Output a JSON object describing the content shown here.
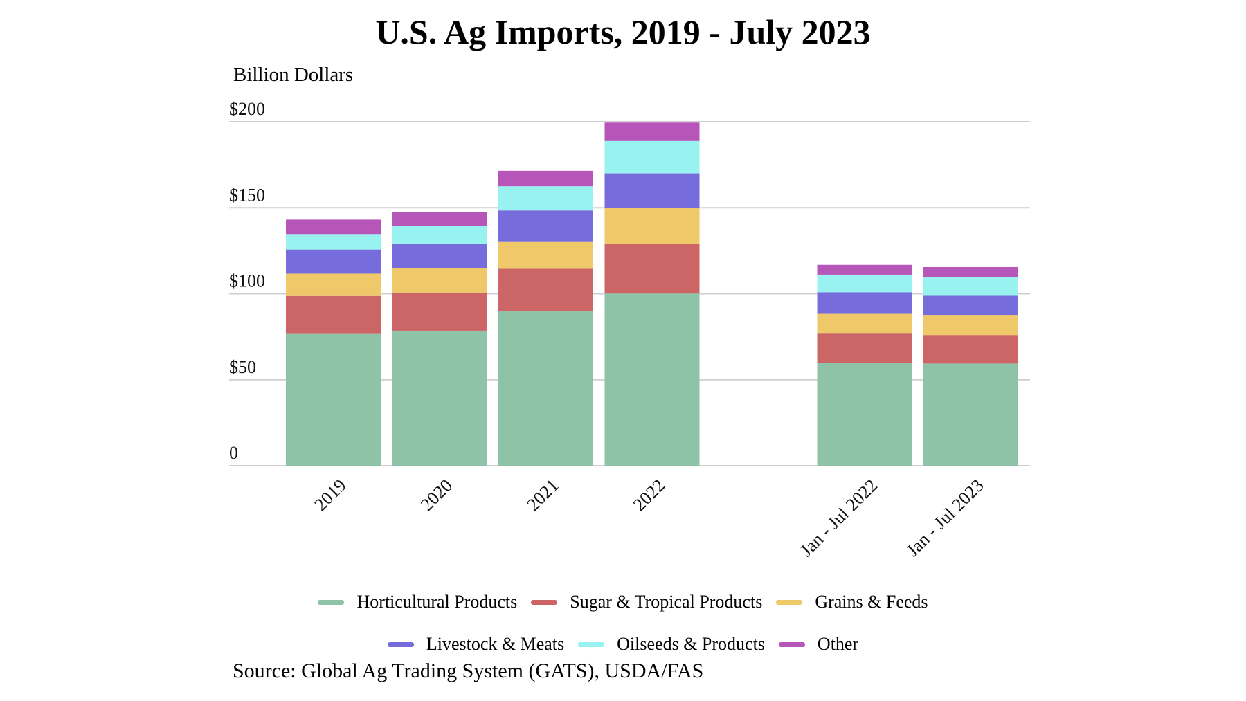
{
  "chart_data": {
    "type": "bar",
    "stacked": true,
    "title": "U.S. Ag Imports, 2019 - July 2023",
    "xlabel": "",
    "ylabel": "Billion Dollars",
    "ylim": [
      0,
      200
    ],
    "yticks": [
      0,
      50,
      100,
      150,
      200
    ],
    "ytick_labels": [
      "0",
      "$50",
      "$100",
      "$150",
      "$200"
    ],
    "grid": true,
    "legend_position": "bottom",
    "categories": [
      "2019",
      "2020",
      "2021",
      "2022",
      "",
      "Jan - Jul 2022",
      "Jan - Jul 2023"
    ],
    "series": [
      {
        "name": "Horticultural Products",
        "color": "#8FC3A8",
        "values": [
          77.0,
          78.5,
          89.7,
          100.1,
          null,
          59.9,
          59.4
        ]
      },
      {
        "name": "Sugar & Tropical Products",
        "color": "#CC6666",
        "values": [
          21.7,
          22.2,
          24.8,
          29.1,
          null,
          17.3,
          16.6
        ]
      },
      {
        "name": "Grains & Feeds",
        "color": "#EFC969",
        "values": [
          13.0,
          14.4,
          16.0,
          20.8,
          null,
          11.1,
          11.7
        ]
      },
      {
        "name": "Livestock & Meats",
        "color": "#766CDB",
        "values": [
          14.0,
          14.1,
          17.9,
          20.0,
          null,
          12.6,
          11.1
        ]
      },
      {
        "name": "Oilseeds & Products",
        "color": "#97F2F0",
        "values": [
          9.0,
          10.3,
          14.1,
          18.8,
          null,
          10.2,
          11.0
        ]
      },
      {
        "name": "Other",
        "color": "#B556B8",
        "values": [
          8.4,
          7.8,
          9.0,
          10.7,
          null,
          5.7,
          5.7
        ]
      }
    ],
    "legend_rows": [
      [
        0,
        1,
        2
      ],
      [
        3,
        4,
        5
      ]
    ],
    "source": "Source: Global Ag Trading System (GATS), USDA/FAS"
  }
}
